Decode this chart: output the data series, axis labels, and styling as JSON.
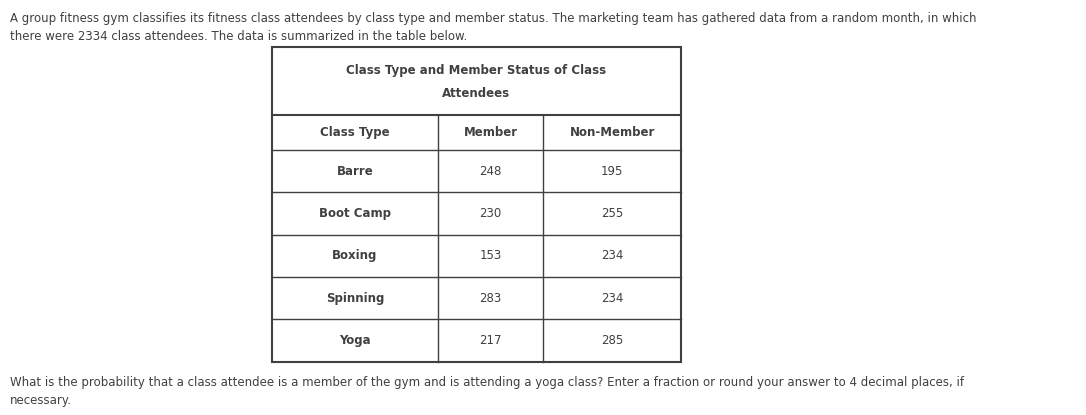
{
  "intro_text": "A group fitness gym classifies its fitness class attendees by class type and member status. The marketing team has gathered data from a random month, in which\nthere were 2334 class attendees. The data is summarized in the table below.",
  "table_title_line1": "Class Type and Member Status of Class",
  "table_title_line2": "Attendees",
  "col_headers": [
    "Class Type",
    "Member",
    "Non-Member"
  ],
  "rows": [
    [
      "Barre",
      "248",
      "195"
    ],
    [
      "Boot Camp",
      "230",
      "255"
    ],
    [
      "Boxing",
      "153",
      "234"
    ],
    [
      "Spinning",
      "283",
      "234"
    ],
    [
      "Yoga",
      "217",
      "285"
    ]
  ],
  "footer_text": "What is the probability that a class attendee is a member of the gym and is attending a yoga class? Enter a fraction or round your answer to 4 decimal places, if\nnecessary.",
  "bg_color": "#ffffff",
  "text_color": "#404040",
  "table_border_color": "#404040",
  "table_bg": "#ffffff",
  "title_fontsize": 8.5,
  "body_fontsize": 8.5,
  "intro_fontsize": 8.5,
  "footer_fontsize": 8.5
}
